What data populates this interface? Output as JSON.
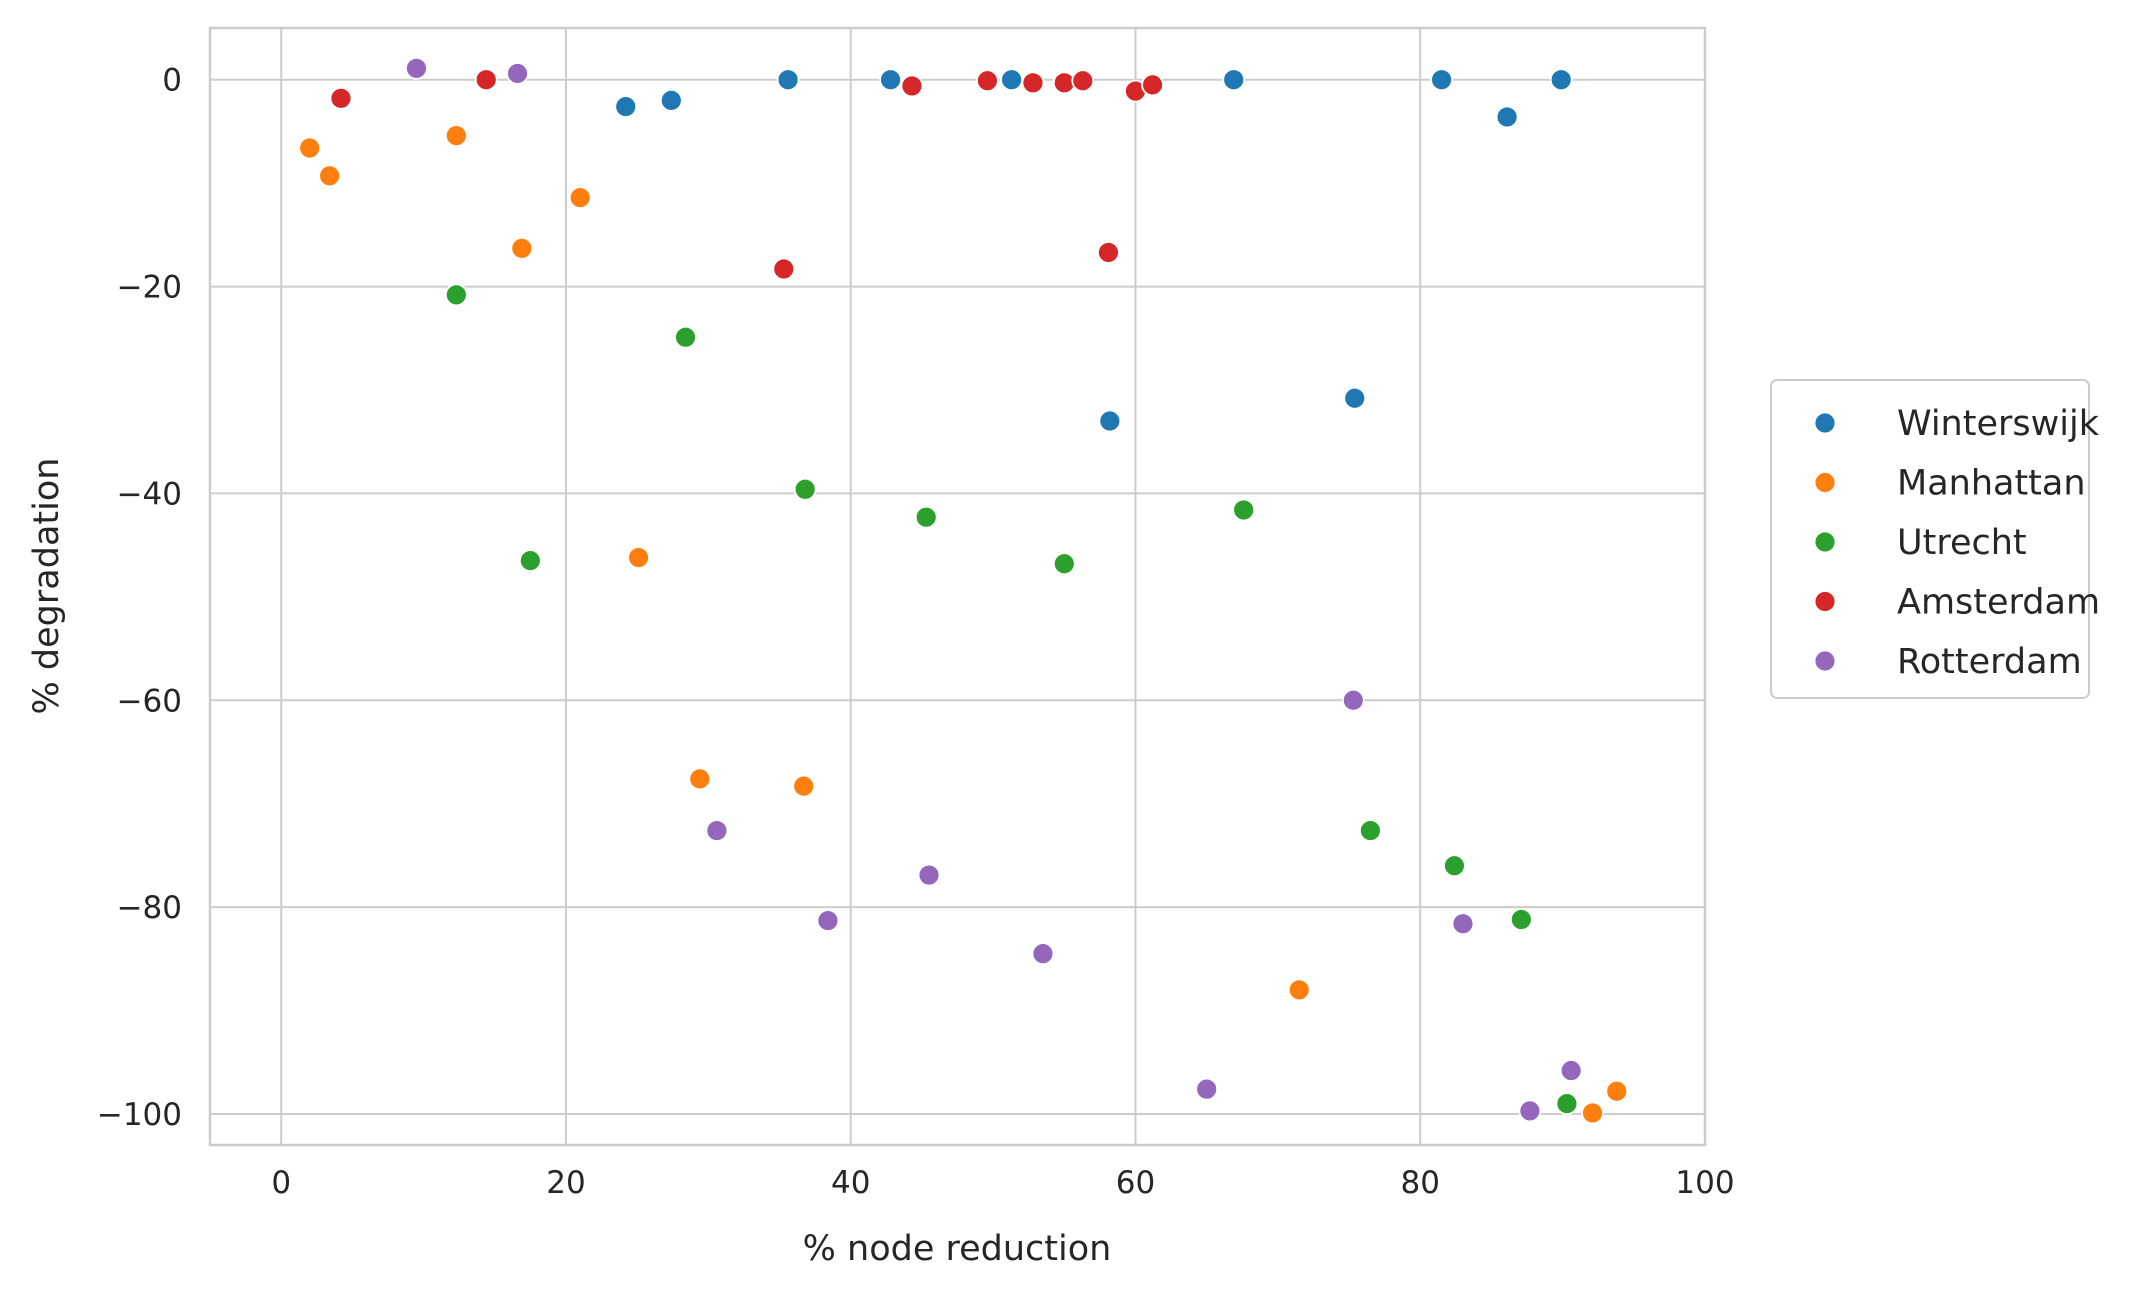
{
  "chart_data": {
    "type": "scatter",
    "xlabel": "% node reduction",
    "ylabel": "% degradation",
    "xlim": [
      -5,
      100
    ],
    "ylim": [
      -103,
      5
    ],
    "xticks": [
      0,
      20,
      40,
      60,
      80,
      100
    ],
    "yticks": [
      0,
      -20,
      -40,
      -60,
      -80,
      -100
    ],
    "xtick_labels": [
      "0",
      "20",
      "40",
      "60",
      "80",
      "100"
    ],
    "ytick_labels": [
      "0",
      "−20",
      "−40",
      "−60",
      "−80",
      "−100"
    ],
    "grid": true,
    "legend_position": "outside-right",
    "series": [
      {
        "name": "Winterswijk",
        "color": "#1f77b4",
        "points": [
          [
            24.2,
            -2.6
          ],
          [
            27.4,
            -2.0
          ],
          [
            35.6,
            0.0
          ],
          [
            42.8,
            0.0
          ],
          [
            51.3,
            0.0
          ],
          [
            58.2,
            -33.0
          ],
          [
            66.9,
            0.0
          ],
          [
            75.4,
            -30.8
          ],
          [
            81.5,
            0.0
          ],
          [
            86.1,
            -3.6
          ],
          [
            89.9,
            0.0
          ]
        ]
      },
      {
        "name": "Manhattan",
        "color": "#ff7f0e",
        "points": [
          [
            2.0,
            -6.6
          ],
          [
            3.4,
            -9.3
          ],
          [
            12.3,
            -5.4
          ],
          [
            16.9,
            -16.3
          ],
          [
            21.0,
            -11.4
          ],
          [
            25.1,
            -46.2
          ],
          [
            29.4,
            -67.6
          ],
          [
            36.7,
            -68.3
          ],
          [
            71.5,
            -88.0
          ],
          [
            92.1,
            -99.9
          ],
          [
            93.8,
            -97.8
          ]
        ]
      },
      {
        "name": "Utrecht",
        "color": "#2ca02c",
        "points": [
          [
            12.3,
            -20.8
          ],
          [
            17.5,
            -46.5
          ],
          [
            28.4,
            -24.9
          ],
          [
            36.8,
            -39.6
          ],
          [
            45.3,
            -42.3
          ],
          [
            55.0,
            -46.8
          ],
          [
            67.6,
            -41.6
          ],
          [
            76.5,
            -72.6
          ],
          [
            82.4,
            -76.0
          ],
          [
            87.1,
            -81.2
          ],
          [
            90.3,
            -99.0
          ]
        ]
      },
      {
        "name": "Amsterdam",
        "color": "#d62728",
        "points": [
          [
            4.2,
            -1.8
          ],
          [
            14.4,
            0.0
          ],
          [
            35.3,
            -18.3
          ],
          [
            44.3,
            -0.6
          ],
          [
            49.6,
            -0.1
          ],
          [
            52.8,
            -0.3
          ],
          [
            55.0,
            -0.3
          ],
          [
            56.3,
            -0.1
          ],
          [
            58.1,
            -16.7
          ],
          [
            60.0,
            -1.1
          ],
          [
            61.2,
            -0.5
          ]
        ]
      },
      {
        "name": "Rotterdam",
        "color": "#9467bd",
        "points": [
          [
            9.5,
            1.1
          ],
          [
            16.6,
            0.6
          ],
          [
            30.6,
            -72.6
          ],
          [
            38.4,
            -81.3
          ],
          [
            45.5,
            -76.9
          ],
          [
            53.5,
            -84.5
          ],
          [
            65.0,
            -97.6
          ],
          [
            75.3,
            -60.0
          ],
          [
            83.0,
            -81.6
          ],
          [
            87.7,
            -99.7
          ],
          [
            90.6,
            -95.8
          ]
        ]
      }
    ]
  }
}
